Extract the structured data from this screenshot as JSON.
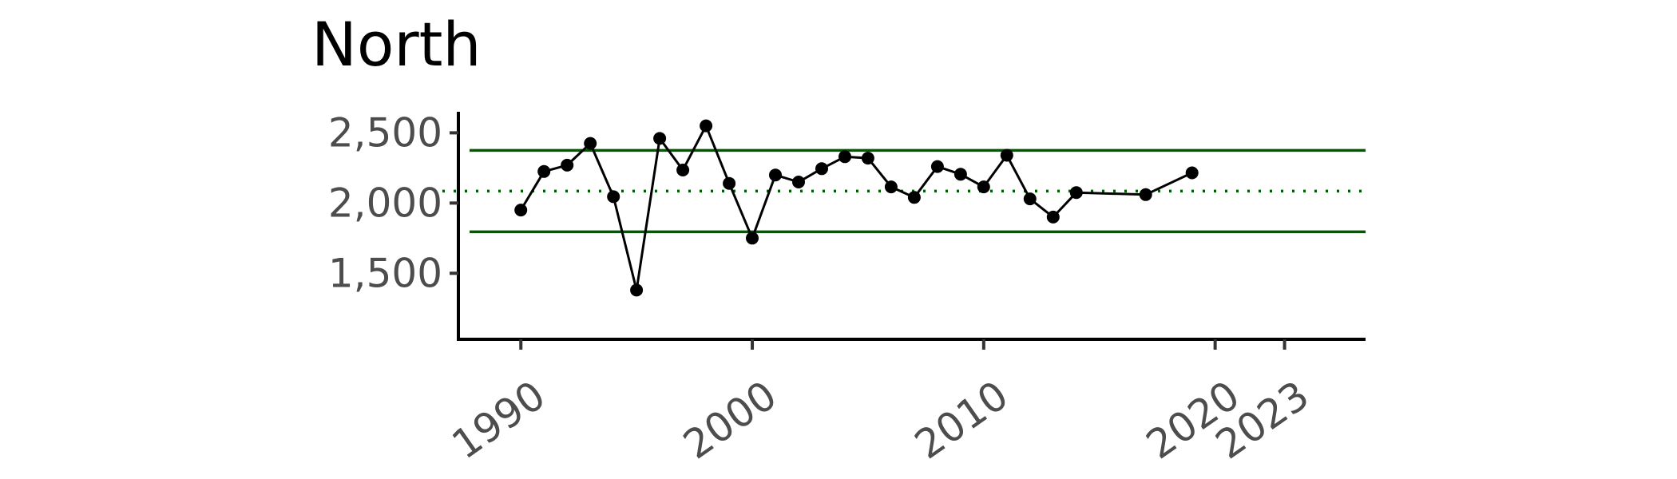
{
  "chart_data": {
    "type": "line",
    "title": "North",
    "xlabel": "",
    "ylabel": "",
    "xlim": [
      1987.3,
      2026.5
    ],
    "ylim": [
      1030,
      2650
    ],
    "x_ticks": [
      1990,
      2000,
      2010,
      2020,
      2023
    ],
    "x_tick_labels": [
      "1990",
      "2000",
      "2010",
      "2020",
      "2023"
    ],
    "y_ticks": [
      1500,
      2000,
      2500
    ],
    "y_tick_labels": [
      "1,500",
      "2,000",
      "2,500"
    ],
    "grid": false,
    "reference_lines": {
      "mean": 2085,
      "upper": 2375,
      "lower": 1795,
      "color": "#005a00",
      "mean_style": "dotted",
      "limit_style": "solid"
    },
    "series": [
      {
        "color": "#000000",
        "points": [
          [
            1990,
            1950
          ],
          [
            1991,
            2225
          ],
          [
            1992,
            2270
          ],
          [
            1993,
            2425
          ],
          [
            1994,
            2045
          ],
          [
            1995,
            1380
          ],
          [
            1996,
            2460
          ],
          [
            1997,
            2235
          ],
          [
            1998,
            2550
          ],
          [
            1999,
            2140
          ],
          [
            2000,
            1750
          ],
          [
            2001,
            2200
          ],
          [
            2002,
            2150
          ],
          [
            2003,
            2245
          ],
          [
            2004,
            2330
          ],
          [
            2005,
            2320
          ],
          [
            2006,
            2115
          ],
          [
            2007,
            2040
          ],
          [
            2008,
            2260
          ],
          [
            2009,
            2205
          ],
          [
            2010,
            2115
          ],
          [
            2011,
            2340
          ],
          [
            2012,
            2030
          ],
          [
            2013,
            1900
          ],
          [
            2014,
            2075
          ],
          [
            2017,
            2060
          ],
          [
            2019,
            2215
          ]
        ]
      }
    ]
  }
}
